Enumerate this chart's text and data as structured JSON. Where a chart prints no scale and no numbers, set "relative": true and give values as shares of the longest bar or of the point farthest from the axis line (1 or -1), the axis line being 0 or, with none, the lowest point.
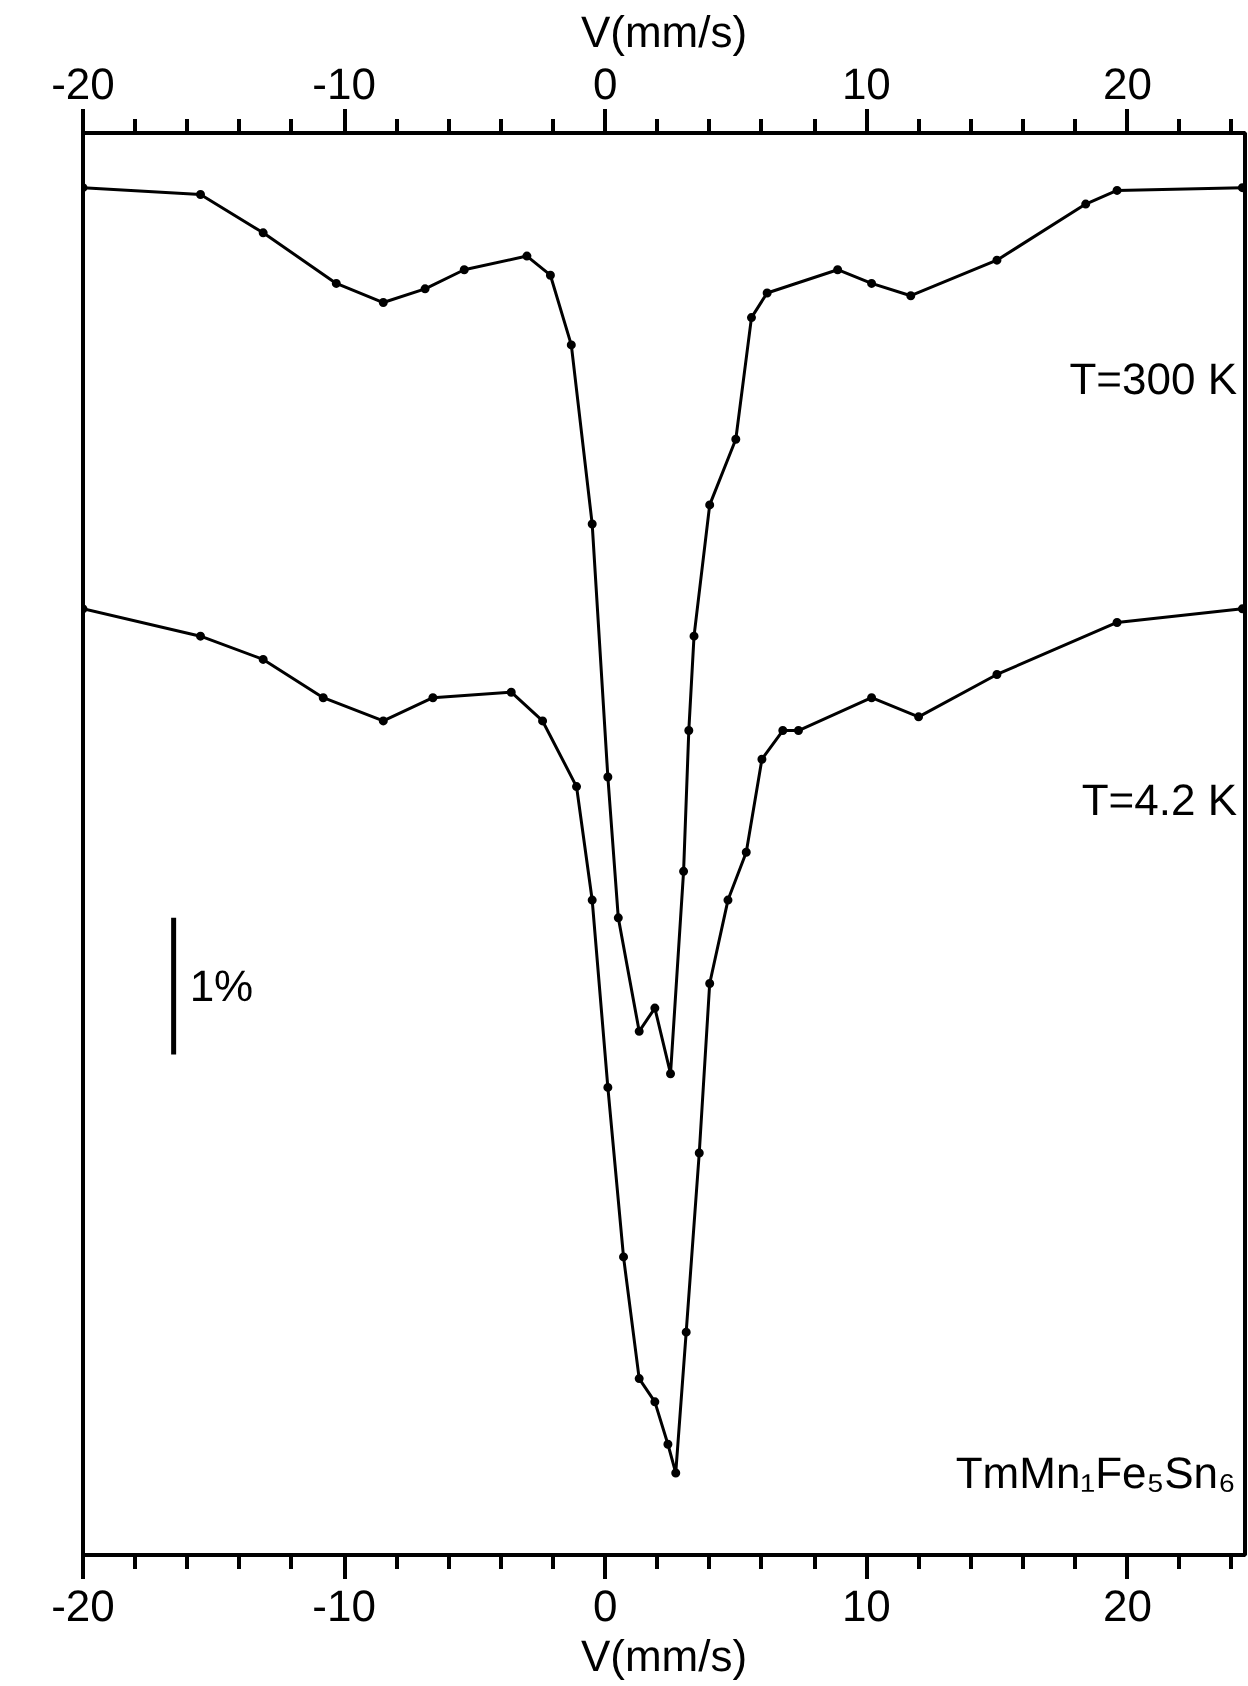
{
  "chart_data": {
    "type": "line",
    "relative": true,
    "marker": "circle",
    "line_style": "solid",
    "grid": false,
    "tick_labels": "x",
    "xlabel": "V(mm/s)",
    "x2label": "V(mm/s)",
    "xlim": [
      -20,
      24.5
    ],
    "x2lim": [
      -20,
      24.5
    ],
    "xticks": [
      -20,
      {
        "value": -18,
        "label": null
      },
      {
        "value": -16,
        "label": null
      },
      {
        "value": -14,
        "label": null
      },
      {
        "value": -12,
        "label": null
      },
      -10,
      {
        "value": -8,
        "label": null
      },
      {
        "value": -6,
        "label": null
      },
      {
        "value": -4,
        "label": null
      },
      {
        "value": -2,
        "label": null
      },
      0,
      {
        "value": 2,
        "label": null
      },
      {
        "value": 4,
        "label": null
      },
      {
        "value": 6,
        "label": null
      },
      {
        "value": 8,
        "label": null
      },
      10,
      {
        "value": 12,
        "label": null
      },
      {
        "value": 14,
        "label": null
      },
      {
        "value": 16,
        "label": null
      },
      {
        "value": 18,
        "label": null
      },
      20,
      {
        "value": 22,
        "label": null
      },
      {
        "value": 24,
        "label": null
      }
    ],
    "x2ticks": [
      -20,
      {
        "value": -18,
        "label": null
      },
      {
        "value": -16,
        "label": null
      },
      {
        "value": -14,
        "label": null
      },
      {
        "value": -12,
        "label": null
      },
      -10,
      {
        "value": -8,
        "label": null
      },
      {
        "value": -6,
        "label": null
      },
      {
        "value": -4,
        "label": null
      },
      {
        "value": -2,
        "label": null
      },
      0,
      {
        "value": 2,
        "label": null
      },
      {
        "value": 4,
        "label": null
      },
      {
        "value": 6,
        "label": null
      },
      {
        "value": 8,
        "label": null
      },
      10,
      {
        "value": 12,
        "label": null
      },
      {
        "value": 14,
        "label": null
      },
      {
        "value": 16,
        "label": null
      },
      {
        "value": 18,
        "label": null
      },
      20,
      {
        "value": 22,
        "label": null
      },
      {
        "value": 24,
        "label": null
      }
    ],
    "series": [
      {
        "name": "T=300 K",
        "color": "#000000",
        "x": [
          -20.0,
          -15.5,
          -13.1,
          -10.3,
          -8.5,
          -6.9,
          -5.4,
          -3.0,
          -2.1,
          -1.3,
          -0.5,
          0.1,
          0.5,
          1.3,
          1.9,
          2.5,
          3.0,
          3.2,
          3.4,
          4.0,
          5.0,
          5.6,
          6.2,
          8.9,
          10.2,
          11.7,
          15.0,
          18.4,
          19.6,
          24.4
        ],
        "values": [
          1.0,
          0.995,
          0.967,
          0.93,
          0.916,
          0.926,
          0.94,
          0.95,
          0.936,
          0.885,
          0.754,
          0.569,
          0.466,
          0.383,
          0.4,
          0.352,
          0.5,
          0.603,
          0.672,
          0.768,
          0.816,
          0.905,
          0.923,
          0.94,
          0.93,
          0.921,
          0.947,
          0.988,
          0.998,
          1.0
        ]
      },
      {
        "name": "T=4.2 K",
        "color": "#000000",
        "x": [
          -20.0,
          -15.5,
          -13.1,
          -10.8,
          -8.5,
          -6.6,
          -3.6,
          -2.4,
          -1.1,
          -0.5,
          0.1,
          0.7,
          1.3,
          1.9,
          2.4,
          2.7,
          3.1,
          3.6,
          4.0,
          4.7,
          5.4,
          6.0,
          6.8,
          7.4,
          10.2,
          12.0,
          15.0,
          19.6,
          24.4
        ],
        "values": [
          0.692,
          0.672,
          0.655,
          0.627,
          0.61,
          0.627,
          0.631,
          0.61,
          0.562,
          0.479,
          0.342,
          0.218,
          0.129,
          0.112,
          0.081,
          0.06,
          0.163,
          0.294,
          0.418,
          0.479,
          0.514,
          0.582,
          0.603,
          0.603,
          0.627,
          0.613,
          0.644,
          0.682,
          0.692
        ]
      }
    ],
    "annotations": [
      "1%",
      "TmMn₁Fe₅Sn₆"
    ]
  }
}
